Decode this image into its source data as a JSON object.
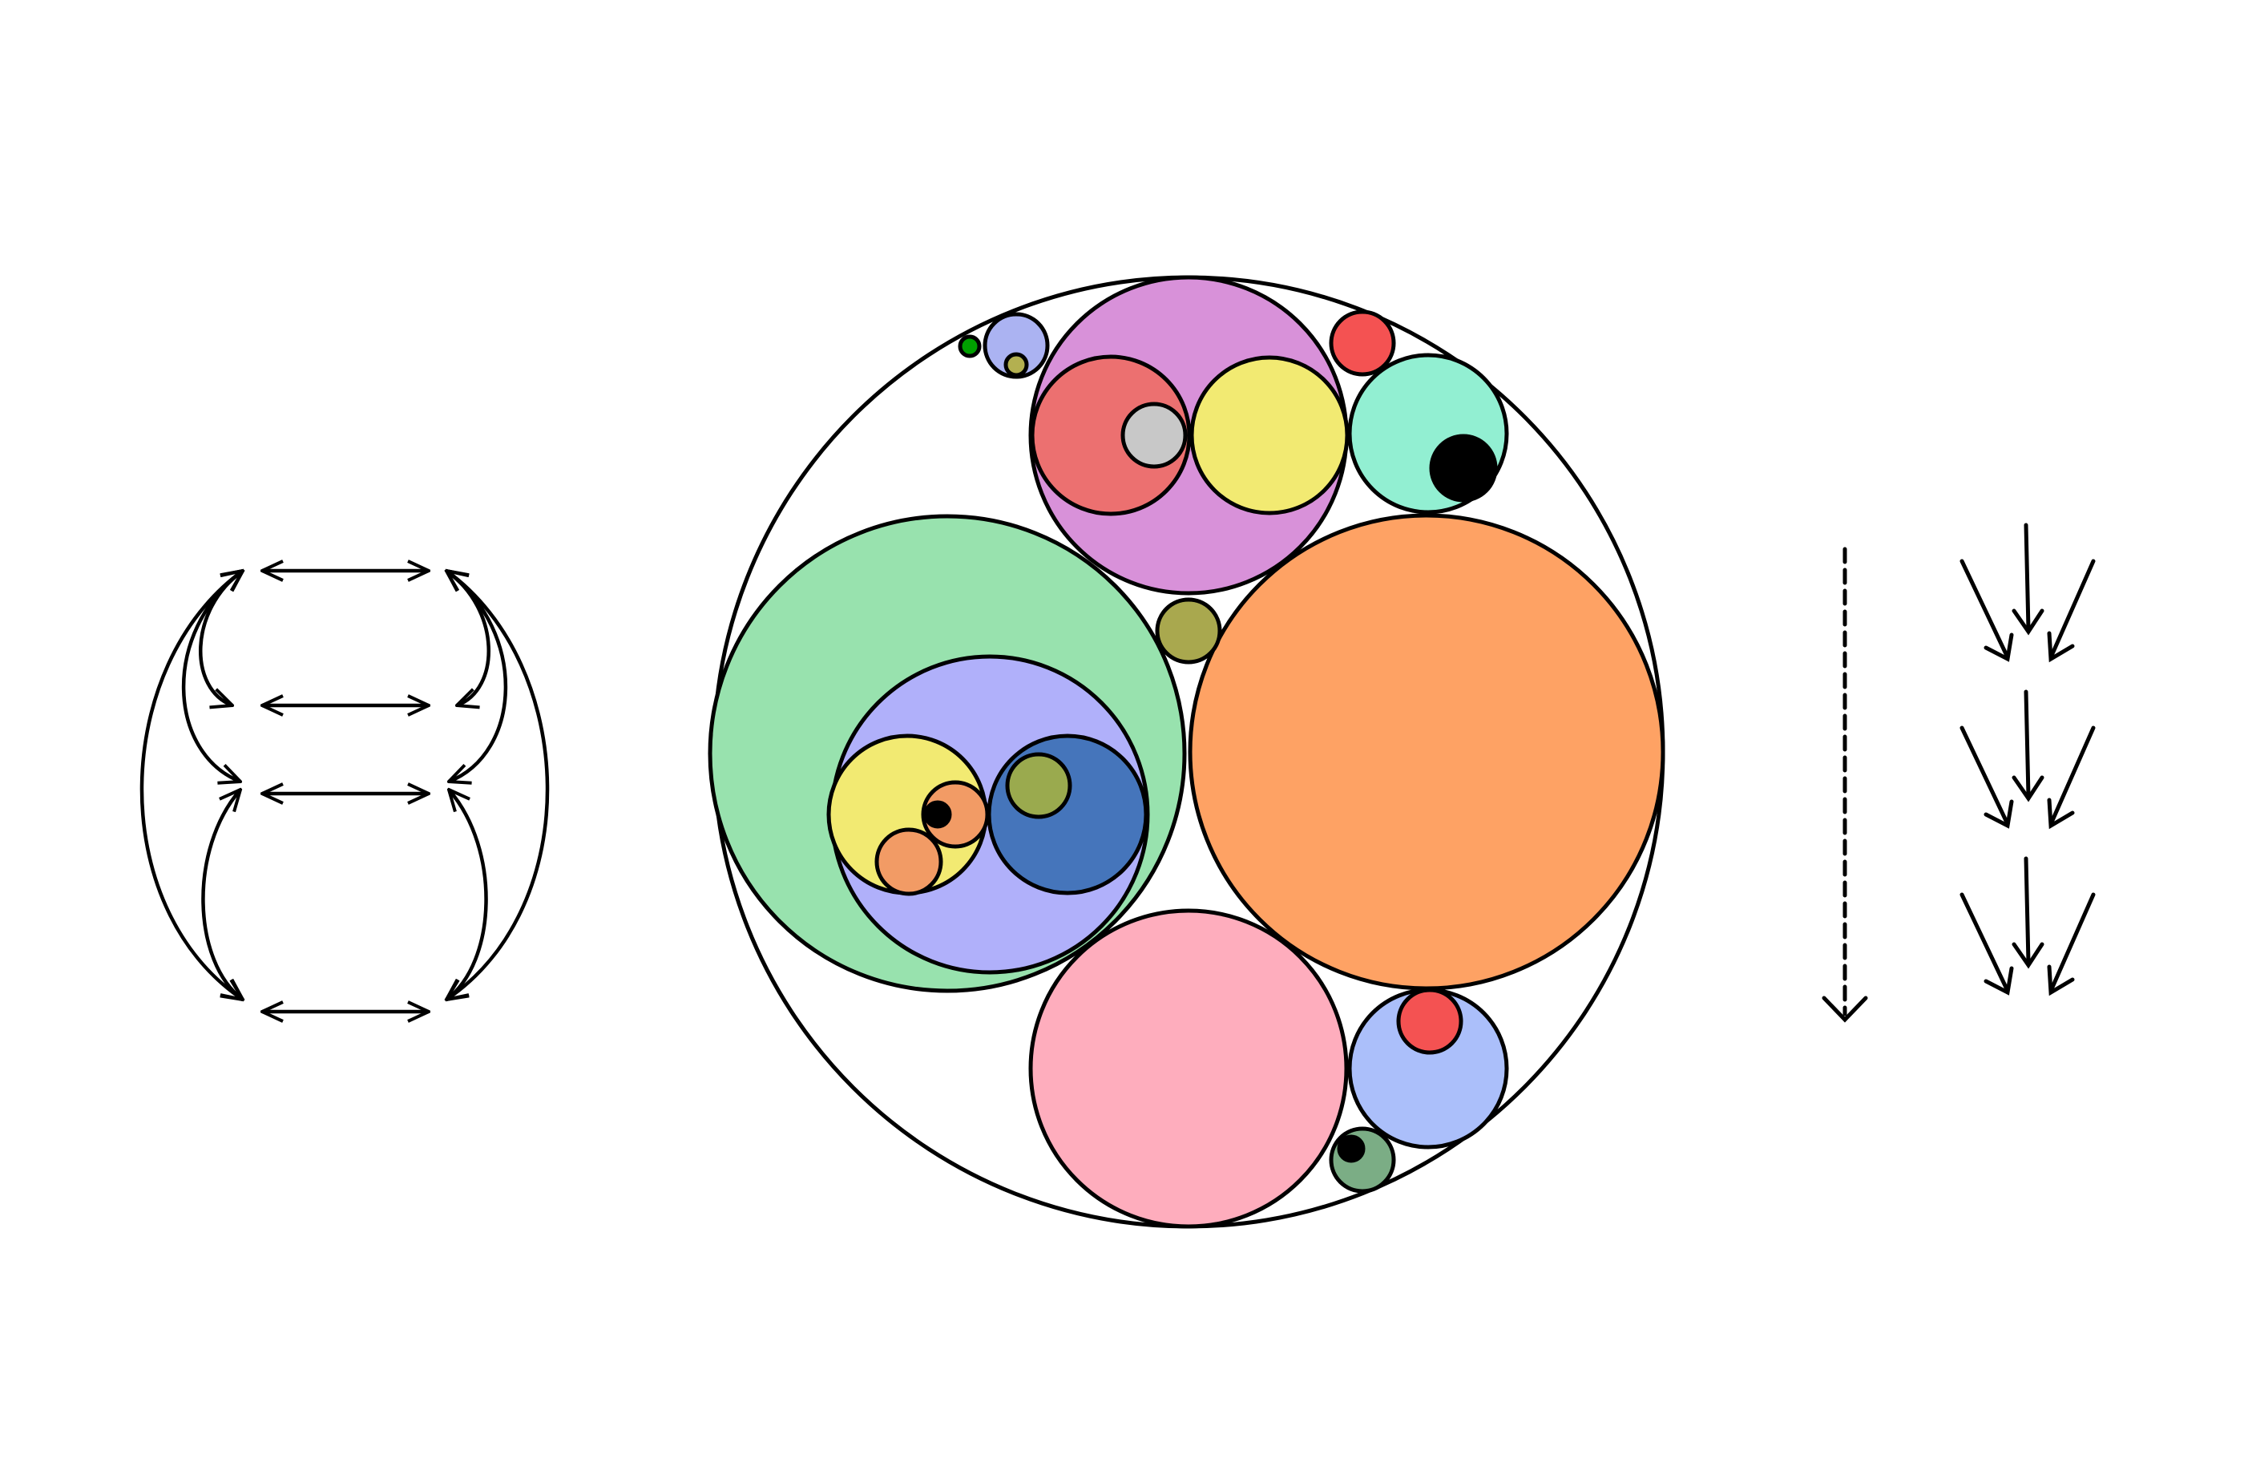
{
  "colors": {
    "stroke": "#000000",
    "background": "#ffffff"
  },
  "hierarchy_graph": {
    "levels": 4,
    "nodes_per_level": 2,
    "edges": "bidirectional"
  },
  "circle_packing": {
    "name": "root",
    "color": "#ffffff",
    "children": [
      {
        "name": "group-green",
        "color": "#98e2ae",
        "children": [
          {
            "name": "group-lavender",
            "color": "#b0b0fa",
            "children": [
              {
                "name": "group-yellow",
                "color": "#f2ea72",
                "children": [
                  {
                    "name": "leaf-orange-small",
                    "color": "#f29b65"
                  },
                  {
                    "name": "group-orange",
                    "color": "#f29b65",
                    "children": [
                      {
                        "name": "leaf-black",
                        "color": "#000000"
                      }
                    ]
                  }
                ]
              },
              {
                "name": "group-blue",
                "color": "#4575bb",
                "children": [
                  {
                    "name": "leaf-olive",
                    "color": "#9aaa4e"
                  }
                ]
              }
            ]
          }
        ]
      },
      {
        "name": "leaf-orange-large",
        "color": "#fea264"
      },
      {
        "name": "group-purple",
        "color": "#d891d9",
        "children": [
          {
            "name": "group-red",
            "color": "#ec7070",
            "children": [
              {
                "name": "leaf-gray",
                "color": "#c8c8c8"
              }
            ]
          },
          {
            "name": "leaf-yellow",
            "color": "#f2ea72"
          }
        ]
      },
      {
        "name": "leaf-pink",
        "color": "#feadbd"
      },
      {
        "name": "group-mint",
        "color": "#92efd2",
        "children": [
          {
            "name": "leaf-black-2",
            "color": "#000000"
          }
        ]
      },
      {
        "name": "group-periwinkle",
        "color": "#abbffa",
        "children": [
          {
            "name": "leaf-red",
            "color": "#f45252"
          }
        ]
      },
      {
        "name": "leaf-olive-2",
        "color": "#a9a84e"
      },
      {
        "name": "leaf-red-2",
        "color": "#f45252"
      },
      {
        "name": "group-lightblue",
        "color": "#abb3f2",
        "children": [
          {
            "name": "leaf-olive-3",
            "color": "#b3b050"
          }
        ]
      },
      {
        "name": "leaf-green",
        "color": "#00a000"
      },
      {
        "name": "group-sage",
        "color": "#7bad85",
        "children": [
          {
            "name": "leaf-black-3",
            "color": "#000000"
          }
        ]
      }
    ]
  },
  "flow_legend": {
    "dashed_arrow": "dashed-down-arrow",
    "arrow_groups": 3,
    "arrows_per_group": 3
  }
}
